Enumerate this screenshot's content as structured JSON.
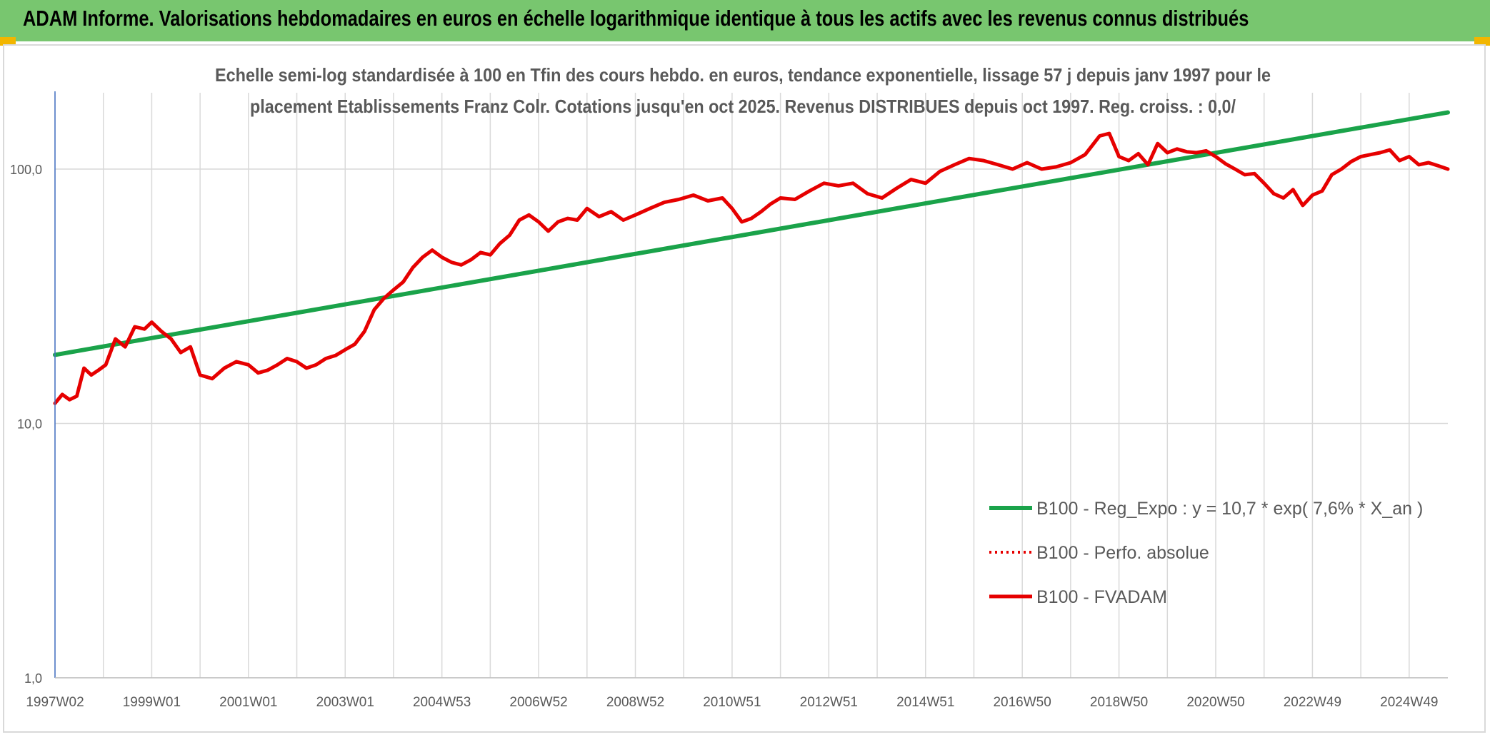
{
  "banner": {
    "title": "ADAM Informe. Valorisations hebdomadaires en euros en échelle logarithmique identique à tous les actifs avec les revenus connus distribués"
  },
  "colors": {
    "banner": "#78c66f",
    "corner_accent": "#f2b600",
    "trend": "#1aa34a",
    "price": "#e60000",
    "grid": "#d9d9d9",
    "title_text": "#595959",
    "axis_text": "#595959"
  },
  "chart_data": {
    "type": "line",
    "title_lines": [
      "Echelle semi-log standardisée à 100 en Tfin des cours hebdo. en euros, tendance exponentielle, lissage 57 j depuis janv 1997 pour le",
      "placement Etablissements Franz Colr. Cotations jusqu'en oct 2025. Revenus DISTRIBUES depuis oct 1997. Reg. croiss. : 0,0/"
    ],
    "y_scale": "log",
    "ylim": [
      1,
      200
    ],
    "y_ticks": [
      {
        "value": 1,
        "label": "1,0"
      },
      {
        "value": 10,
        "label": "10,0"
      },
      {
        "value": 100,
        "label": "100,0"
      }
    ],
    "xlim": [
      1997.0,
      2025.8
    ],
    "x_ticks": [
      {
        "value": 1997.0,
        "label": "1997W02"
      },
      {
        "value": 1999.0,
        "label": "1999W01"
      },
      {
        "value": 2001.0,
        "label": "2001W01"
      },
      {
        "value": 2003.0,
        "label": "2003W01"
      },
      {
        "value": 2005.0,
        "label": "2004W53"
      },
      {
        "value": 2007.0,
        "label": "2006W52"
      },
      {
        "value": 2009.0,
        "label": "2008W52"
      },
      {
        "value": 2011.0,
        "label": "2010W51"
      },
      {
        "value": 2013.0,
        "label": "2012W51"
      },
      {
        "value": 2015.0,
        "label": "2014W51"
      },
      {
        "value": 2017.0,
        "label": "2016W50"
      },
      {
        "value": 2019.0,
        "label": "2018W50"
      },
      {
        "value": 2021.0,
        "label": "2020W50"
      },
      {
        "value": 2023.0,
        "label": "2022W49"
      },
      {
        "value": 2025.0,
        "label": "2024W49"
      }
    ],
    "grid": true,
    "legend_position": "bottom-right",
    "series": [
      {
        "name": "B100 - Reg_Expo : y = 10,7 * exp( 7,6% *  X_an )",
        "style": "solid",
        "x": [
          1997.0,
          2025.8
        ],
        "y": [
          18.6,
          167.0
        ]
      },
      {
        "name": "B100 - Perfo. absolue",
        "style": "dotted",
        "x": [],
        "y": []
      },
      {
        "name": "B100 - FVADAM",
        "style": "solid",
        "x": [
          1997.0,
          1997.15,
          1997.3,
          1997.45,
          1997.6,
          1997.75,
          1997.9,
          1998.05,
          1998.25,
          1998.45,
          1998.65,
          1998.85,
          1999.0,
          1999.2,
          1999.4,
          1999.6,
          1999.8,
          2000.0,
          2000.25,
          2000.5,
          2000.75,
          2001.0,
          2001.2,
          2001.4,
          2001.6,
          2001.8,
          2002.0,
          2002.2,
          2002.4,
          2002.6,
          2002.8,
          2003.0,
          2003.2,
          2003.4,
          2003.6,
          2003.8,
          2004.0,
          2004.2,
          2004.4,
          2004.6,
          2004.8,
          2005.0,
          2005.2,
          2005.4,
          2005.6,
          2005.8,
          2006.0,
          2006.2,
          2006.4,
          2006.6,
          2006.8,
          2007.0,
          2007.2,
          2007.4,
          2007.6,
          2007.8,
          2008.0,
          2008.25,
          2008.5,
          2008.75,
          2009.0,
          2009.3,
          2009.6,
          2009.9,
          2010.2,
          2010.5,
          2010.8,
          2011.0,
          2011.2,
          2011.4,
          2011.6,
          2011.8,
          2012.0,
          2012.3,
          2012.6,
          2012.9,
          2013.2,
          2013.5,
          2013.8,
          2014.1,
          2014.4,
          2014.7,
          2015.0,
          2015.3,
          2015.6,
          2015.9,
          2016.2,
          2016.5,
          2016.8,
          2017.1,
          2017.4,
          2017.7,
          2018.0,
          2018.3,
          2018.6,
          2018.8,
          2019.0,
          2019.2,
          2019.4,
          2019.6,
          2019.8,
          2020.0,
          2020.2,
          2020.4,
          2020.6,
          2020.8,
          2021.0,
          2021.2,
          2021.4,
          2021.6,
          2021.8,
          2022.0,
          2022.2,
          2022.4,
          2022.6,
          2022.8,
          2023.0,
          2023.2,
          2023.4,
          2023.6,
          2023.8,
          2024.0,
          2024.2,
          2024.4,
          2024.6,
          2024.8,
          2025.0,
          2025.2,
          2025.4,
          2025.6,
          2025.8
        ],
        "y": [
          12.0,
          13.0,
          12.4,
          12.8,
          16.5,
          15.5,
          16.2,
          17.0,
          21.5,
          20.0,
          24.0,
          23.5,
          25.0,
          23.0,
          21.5,
          19.0,
          20.0,
          15.5,
          15.0,
          16.5,
          17.5,
          17.0,
          15.8,
          16.2,
          17.0,
          18.0,
          17.5,
          16.5,
          17.0,
          18.0,
          18.5,
          19.5,
          20.5,
          23.0,
          28.0,
          31.0,
          33.5,
          36.0,
          41.0,
          45.0,
          48.0,
          45.0,
          43.0,
          42.0,
          44.0,
          47.0,
          46.0,
          51.0,
          55.0,
          63.0,
          66.0,
          62.0,
          57.0,
          62.0,
          64.0,
          63.0,
          70.0,
          65.0,
          68.0,
          63.0,
          66.0,
          70.0,
          74.0,
          76.0,
          79.0,
          75.0,
          77.0,
          70.0,
          62.0,
          64.0,
          68.0,
          73.0,
          77.0,
          76.0,
          82.0,
          88.0,
          86.0,
          88.0,
          80.0,
          77.0,
          84.0,
          91.0,
          88.0,
          98.0,
          104.0,
          110.0,
          108.0,
          104.0,
          100.0,
          106.0,
          100.0,
          102.0,
          106.0,
          114.0,
          135.0,
          138.0,
          112.0,
          108.0,
          115.0,
          104.0,
          126.0,
          116.0,
          120.0,
          117.0,
          116.0,
          118.0,
          112.0,
          105.0,
          100.0,
          95.0,
          96.0,
          88.0,
          80.0,
          77.0,
          83.0,
          72.0,
          79.0,
          82.0,
          95.0,
          100.0,
          107.0,
          112.0,
          114.0,
          116.0,
          119.0,
          108.0,
          112.0,
          104.0,
          106.0,
          103.0,
          100.0
        ]
      }
    ]
  }
}
